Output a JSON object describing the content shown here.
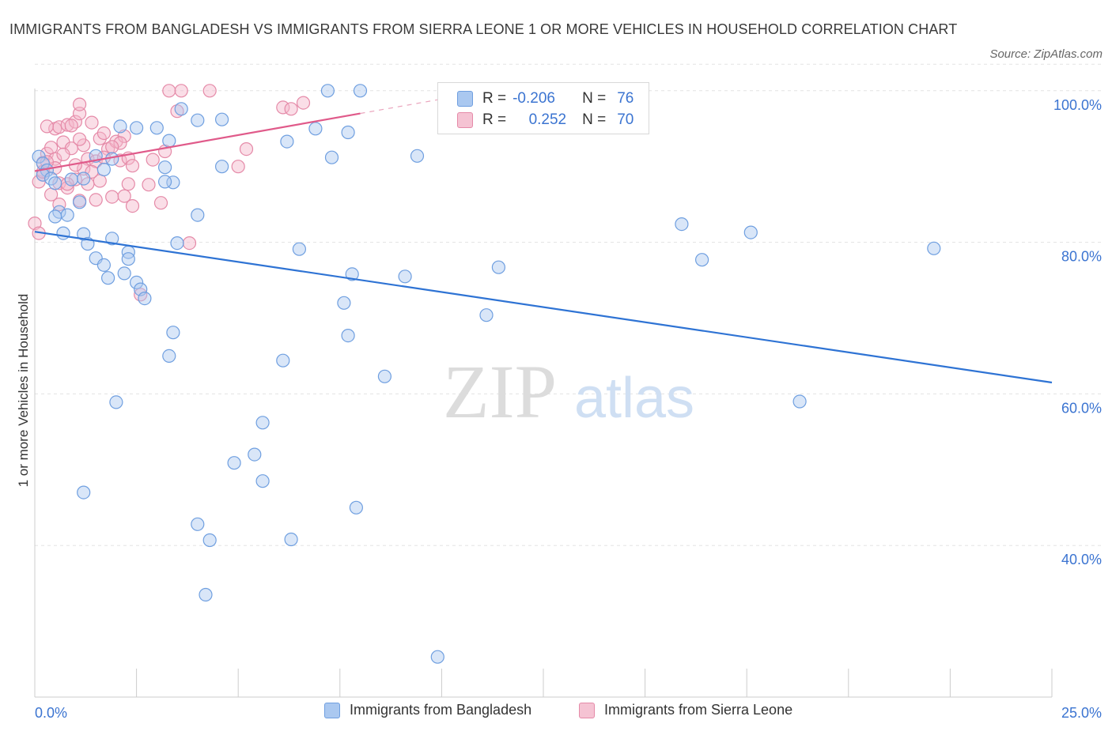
{
  "title": "IMMIGRANTS FROM BANGLADESH VS IMMIGRANTS FROM SIERRA LEONE 1 OR MORE VEHICLES IN HOUSEHOLD CORRELATION CHART",
  "source": "Source: ZipAtlas.com",
  "watermark": {
    "zip": "ZIP",
    "atlas": "atlas"
  },
  "stats": {
    "row1": {
      "r_label": "R =",
      "r_value": "-0.206",
      "n_label": "N =",
      "n_value": "76"
    },
    "row2": {
      "r_label": "R =",
      "r_value": "0.252",
      "n_label": "N =",
      "n_value": "70"
    }
  },
  "legend": {
    "series1": "Immigrants from Bangladesh",
    "series2": "Immigrants from Sierra Leone"
  },
  "colors": {
    "blue_fill": "#aac8f0",
    "blue_stroke": "#6f9fe0",
    "blue_line": "#2e73d4",
    "pink_fill": "#f5b6c9",
    "pink_stroke": "#e58aa8",
    "pink_line": "#e05a8a",
    "tick_label": "#3b74d1"
  },
  "chart_data": {
    "type": "scatter",
    "title": "IMMIGRANTS FROM BANGLADESH VS IMMIGRANTS FROM SIERRA LEONE 1 OR MORE VEHICLES IN HOUSEHOLD CORRELATION CHART",
    "xlabel": "",
    "ylabel": "1 or more Vehicles in Household",
    "xlim": [
      0,
      25
    ],
    "ylim": [
      20,
      102
    ],
    "x_tick_labels": [
      "0.0%",
      "25.0%"
    ],
    "y_ticks": [
      40,
      60,
      80,
      100
    ],
    "y_tick_labels": [
      "40.0%",
      "60.0%",
      "80.0%",
      "100.0%"
    ],
    "grid": "horizontal dashed",
    "series": [
      {
        "name": "Immigrants from Bangladesh",
        "color": "#6f9fe0",
        "r": -0.206,
        "n": 76,
        "trend": {
          "x": [
            0,
            25
          ],
          "y": [
            81.4,
            61.5
          ]
        },
        "points": [
          [
            0.1,
            91.3
          ],
          [
            0.2,
            90.4
          ],
          [
            0.3,
            89.5
          ],
          [
            0.2,
            88.9
          ],
          [
            0.4,
            88.4
          ],
          [
            0.5,
            87.8
          ],
          [
            0.9,
            88.3
          ],
          [
            0.6,
            84.0
          ],
          [
            0.8,
            83.6
          ],
          [
            0.5,
            83.4
          ],
          [
            0.7,
            81.2
          ],
          [
            1.2,
            81.1
          ],
          [
            1.3,
            79.8
          ],
          [
            1.9,
            80.5
          ],
          [
            2.3,
            78.7
          ],
          [
            1.5,
            77.9
          ],
          [
            2.3,
            77.8
          ],
          [
            1.7,
            77.0
          ],
          [
            2.2,
            75.9
          ],
          [
            1.8,
            75.3
          ],
          [
            2.5,
            74.7
          ],
          [
            2.6,
            73.8
          ],
          [
            2.7,
            72.6
          ],
          [
            3.5,
            79.9
          ],
          [
            3.2,
            89.9
          ],
          [
            3.4,
            87.9
          ],
          [
            3.0,
            95.1
          ],
          [
            2.5,
            95.1
          ],
          [
            2.1,
            95.3
          ],
          [
            4.6,
            96.2
          ],
          [
            3.6,
            97.6
          ],
          [
            4.0,
            96.1
          ],
          [
            3.3,
            93.4
          ],
          [
            4.6,
            90.0
          ],
          [
            1.9,
            91.0
          ],
          [
            1.5,
            91.4
          ],
          [
            1.7,
            89.6
          ],
          [
            1.2,
            88.4
          ],
          [
            1.1,
            85.3
          ],
          [
            3.2,
            88.0
          ],
          [
            4.0,
            83.6
          ],
          [
            6.2,
            93.3
          ],
          [
            6.9,
            95.0
          ],
          [
            7.3,
            91.2
          ],
          [
            6.5,
            79.1
          ],
          [
            7.7,
            94.5
          ],
          [
            7.2,
            100.0
          ],
          [
            8.0,
            100.0
          ],
          [
            9.4,
            91.4
          ],
          [
            7.6,
            72.0
          ],
          [
            7.7,
            67.7
          ],
          [
            7.8,
            75.8
          ],
          [
            8.6,
            62.3
          ],
          [
            11.4,
            76.7
          ],
          [
            9.1,
            75.5
          ],
          [
            11.1,
            70.4
          ],
          [
            3.4,
            68.1
          ],
          [
            3.3,
            65.0
          ],
          [
            6.1,
            64.4
          ],
          [
            2.0,
            58.9
          ],
          [
            5.6,
            56.2
          ],
          [
            5.4,
            52.0
          ],
          [
            4.9,
            50.9
          ],
          [
            5.6,
            48.5
          ],
          [
            1.2,
            47.0
          ],
          [
            7.9,
            45.0
          ],
          [
            4.0,
            42.8
          ],
          [
            4.3,
            40.7
          ],
          [
            6.3,
            40.8
          ],
          [
            4.2,
            33.5
          ],
          [
            9.9,
            25.3
          ],
          [
            15.9,
            82.4
          ],
          [
            17.6,
            81.3
          ],
          [
            16.4,
            77.7
          ],
          [
            22.1,
            79.2
          ],
          [
            18.8,
            59.0
          ]
        ]
      },
      {
        "name": "Immigrants from Sierra Leone",
        "color": "#e58aa8",
        "r": 0.252,
        "n": 70,
        "trend": {
          "x": [
            0,
            8
          ],
          "y": [
            89.4,
            97.0
          ]
        },
        "points": [
          [
            0.1,
            88.0
          ],
          [
            0.2,
            88.9
          ],
          [
            0.2,
            90.5
          ],
          [
            0.3,
            91.7
          ],
          [
            0.4,
            92.5
          ],
          [
            0.5,
            95.0
          ],
          [
            0.6,
            95.2
          ],
          [
            0.8,
            95.5
          ],
          [
            1.0,
            95.9
          ],
          [
            1.1,
            97.0
          ],
          [
            1.1,
            98.2
          ],
          [
            0.7,
            93.2
          ],
          [
            0.5,
            91.0
          ],
          [
            0.9,
            92.4
          ],
          [
            1.2,
            92.8
          ],
          [
            0.6,
            87.8
          ],
          [
            0.8,
            87.2
          ],
          [
            1.0,
            88.3
          ],
          [
            0.4,
            86.3
          ],
          [
            0.6,
            85.0
          ],
          [
            1.1,
            85.5
          ],
          [
            1.5,
            85.6
          ],
          [
            0.0,
            82.5
          ],
          [
            0.1,
            81.2
          ],
          [
            1.4,
            95.8
          ],
          [
            1.6,
            93.7
          ],
          [
            1.8,
            92.3
          ],
          [
            2.0,
            93.3
          ],
          [
            1.3,
            91.0
          ],
          [
            1.5,
            90.7
          ],
          [
            1.7,
            91.2
          ],
          [
            2.1,
            90.8
          ],
          [
            2.3,
            91.1
          ],
          [
            2.4,
            90.1
          ],
          [
            2.2,
            94.0
          ],
          [
            2.1,
            93.1
          ],
          [
            1.7,
            94.4
          ],
          [
            1.9,
            92.6
          ],
          [
            1.2,
            89.7
          ],
          [
            1.3,
            87.7
          ],
          [
            1.6,
            88.1
          ],
          [
            1.9,
            86.0
          ],
          [
            2.2,
            86.1
          ],
          [
            2.4,
            84.8
          ],
          [
            2.3,
            87.7
          ],
          [
            2.8,
            87.6
          ],
          [
            3.1,
            85.2
          ],
          [
            3.2,
            92.0
          ],
          [
            3.5,
            97.3
          ],
          [
            3.3,
            100.0
          ],
          [
            3.6,
            100.0
          ],
          [
            4.3,
            100.0
          ],
          [
            5.2,
            92.3
          ],
          [
            5.0,
            90.0
          ],
          [
            6.1,
            97.8
          ],
          [
            6.3,
            97.6
          ],
          [
            6.6,
            98.4
          ],
          [
            3.8,
            79.9
          ],
          [
            2.6,
            73.1
          ],
          [
            0.3,
            95.3
          ],
          [
            0.9,
            95.4
          ],
          [
            0.7,
            91.6
          ],
          [
            0.2,
            89.3
          ],
          [
            0.5,
            89.8
          ],
          [
            1.0,
            90.2
          ],
          [
            1.4,
            89.3
          ],
          [
            0.8,
            87.7
          ],
          [
            2.9,
            90.9
          ],
          [
            0.3,
            90.6
          ],
          [
            1.1,
            93.6
          ]
        ]
      }
    ]
  }
}
